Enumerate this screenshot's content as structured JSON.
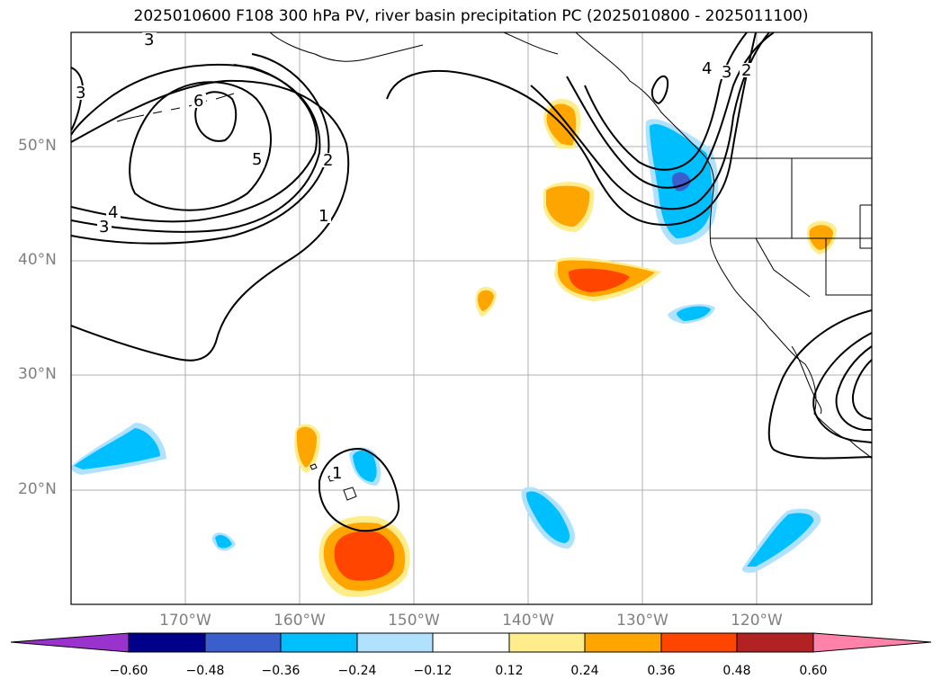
{
  "title": "2025010600 F108 300 hPa PV, river basin precipitation PC (2025010800 - 2025011100)",
  "lat_labels": [
    "50°N",
    "40°N",
    "30°N",
    "20°N"
  ],
  "lon_labels": [
    "170°W",
    "160°W",
    "150°W",
    "140°W",
    "130°W",
    "120°W"
  ],
  "contour_labels": [
    "3",
    "4",
    "3",
    "5",
    "6",
    "2",
    "1",
    "3",
    "4",
    "3",
    "2",
    "1"
  ],
  "colorbar": {
    "ticks": [
      "−0.60",
      "−0.48",
      "−0.36",
      "−0.24",
      "−0.12",
      "0.12",
      "0.24",
      "0.36",
      "0.48",
      "0.60"
    ],
    "colors": [
      "#9a32cd",
      "#00008b",
      "#3a5fcd",
      "#00bfff",
      "#b0e2ff",
      "#ffffff",
      "#ffec8b",
      "#ffa500",
      "#ff4500",
      "#b22222",
      "#ff82ab"
    ]
  }
}
